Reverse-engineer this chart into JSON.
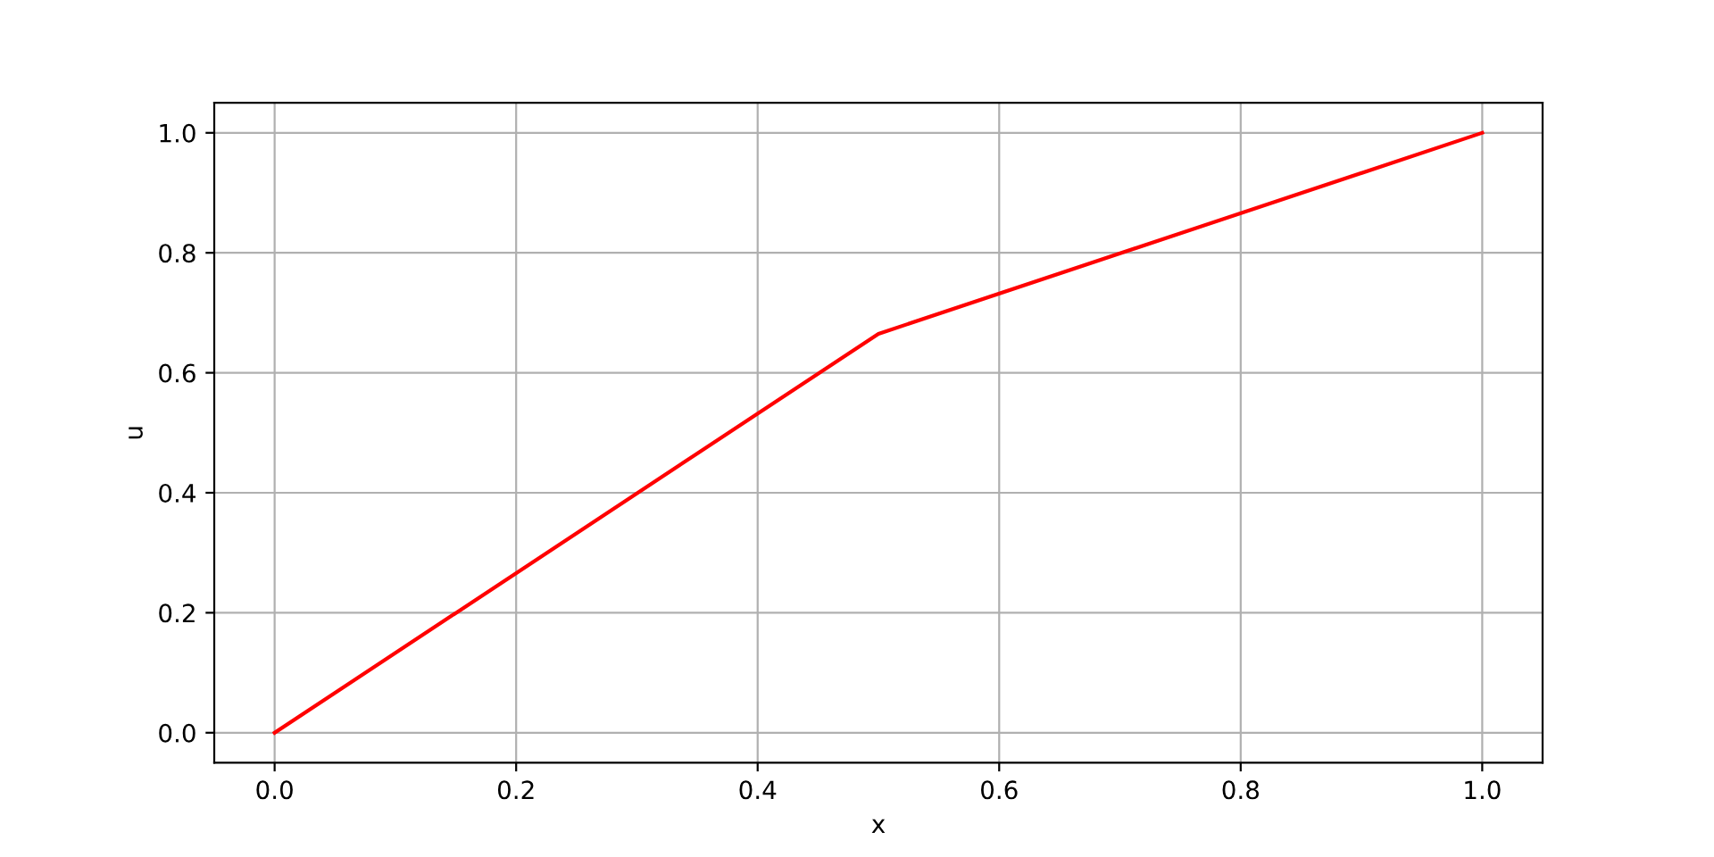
{
  "chart_data": {
    "type": "line",
    "xlabel": "x",
    "ylabel": "u",
    "series": [
      {
        "color": "#ff0000",
        "x": [
          0,
          0.5,
          1
        ],
        "values": [
          0,
          0.665,
          1
        ]
      }
    ],
    "xlim": [
      -0.05,
      1.05
    ],
    "ylim": [
      -0.05,
      1.05
    ],
    "xticks": [
      {
        "value": 0,
        "label": "0.0"
      },
      {
        "value": 0.2,
        "label": "0.2"
      },
      {
        "value": 0.4,
        "label": "0.4"
      },
      {
        "value": 0.6,
        "label": "0.6"
      },
      {
        "value": 0.8,
        "label": "0.8"
      },
      {
        "value": 1,
        "label": "1.0"
      }
    ],
    "yticks": [
      {
        "value": 0,
        "label": "0.0"
      },
      {
        "value": 0.2,
        "label": "0.2"
      },
      {
        "value": 0.4,
        "label": "0.4"
      },
      {
        "value": 0.6,
        "label": "0.6"
      },
      {
        "value": 0.8,
        "label": "0.8"
      },
      {
        "value": 1,
        "label": "1.0"
      }
    ],
    "grid": true
  }
}
